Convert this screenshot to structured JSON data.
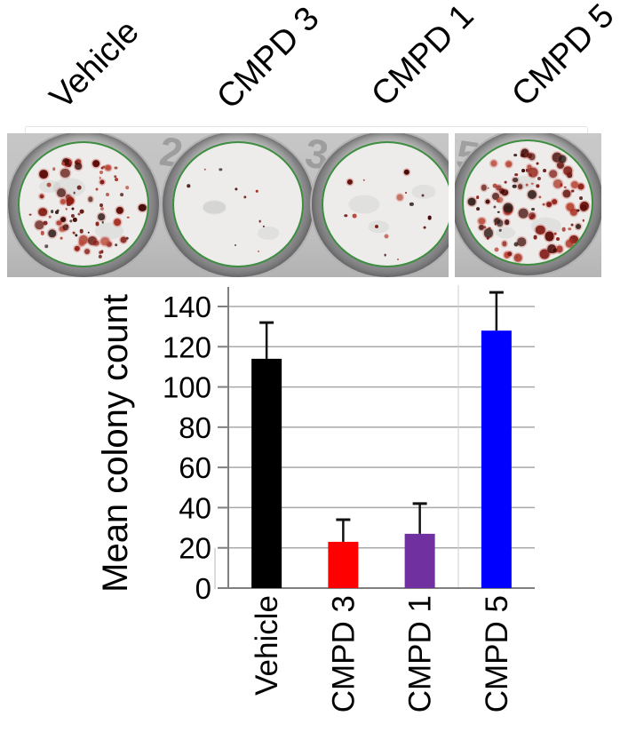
{
  "figure": {
    "background": "#ffffff",
    "kind": "colony formation assay figure"
  },
  "dish_panel": {
    "labels": [
      "Vehicle",
      "CMPD 3",
      "CMPD 1",
      "CMPD 5"
    ],
    "photo_digits": [
      "2",
      "3",
      "5"
    ],
    "colors": {
      "photo_background": "#c4c4c4",
      "dish_rim": "#7d7d7f",
      "dish_ring": "#3e8e41",
      "agar": "#edecea",
      "colony_palette": [
        "#7e140e",
        "#8f1d15",
        "#a52e20",
        "#b94a39",
        "#5f0f0a",
        "#420b07",
        "#33201c"
      ]
    },
    "dishes": [
      {
        "label": "Vehicle",
        "colony_density": "high",
        "colonies_drawn": 88,
        "min_dot": 2.5,
        "max_dot": 10.5,
        "seed": 101
      },
      {
        "label": "CMPD 3",
        "colony_density": "low",
        "colonies_drawn": 10,
        "min_dot": 2.0,
        "max_dot": 3.5,
        "seed": 202
      },
      {
        "label": "CMPD 1",
        "colony_density": "low",
        "colonies_drawn": 15,
        "min_dot": 2.0,
        "max_dot": 7.0,
        "seed": 303
      },
      {
        "label": "CMPD 5",
        "colony_density": "high",
        "colonies_drawn": 108,
        "min_dot": 2.5,
        "max_dot": 11.0,
        "seed": 404
      }
    ]
  },
  "chart_data": {
    "type": "bar",
    "categories": [
      "Vehicle",
      "CMPD 3",
      "CMPD 1",
      "CMPD 5"
    ],
    "values": [
      114,
      23,
      27,
      128
    ],
    "errors_plus": [
      18,
      11,
      15,
      19
    ],
    "bar_colors": [
      "#000000",
      "#ff0000",
      "#7030a0",
      "#0000ff"
    ],
    "title": "",
    "xlabel": "",
    "ylabel": "Mean colony count",
    "ylim": [
      0,
      140
    ],
    "yticks": [
      0,
      20,
      40,
      60,
      80,
      100,
      120,
      140
    ],
    "grid": true,
    "legend": "none",
    "colors": {
      "gridline": "#a8a8a8",
      "axis": "#7f7f7f",
      "seam_artifact": "#cfcfcf",
      "error_bar": "#111111",
      "tick_label": "#000000"
    }
  }
}
